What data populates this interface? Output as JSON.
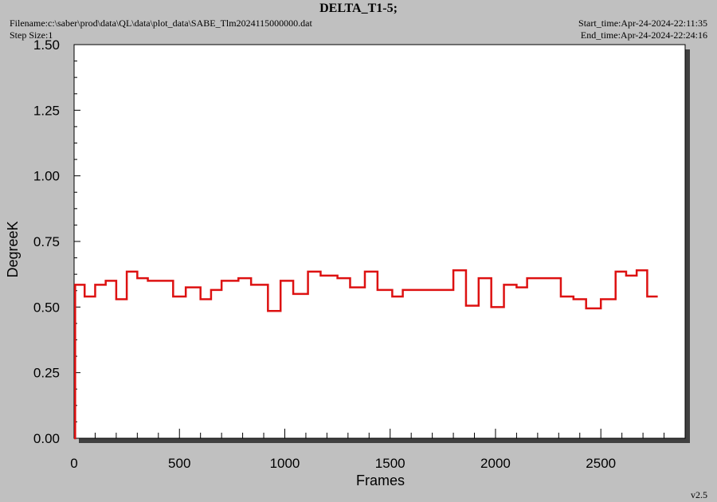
{
  "header": {
    "title": "DELTA_T1-5;",
    "filename": "Filename:c:\\saber\\prod\\data\\QL\\data\\plot_data\\SABE_Tlm2024115000000.dat",
    "step_size": "Step Size:1",
    "start_time": "Start_time:Apr-24-2024-22:11:35",
    "end_time": "End_time:Apr-24-2024-22:24:16"
  },
  "footer": {
    "version": "v2.5"
  },
  "colors": {
    "series": "#dd1111",
    "plot_bg": "#ffffff",
    "page_bg": "#c0c0c0",
    "shadow": "#404040"
  },
  "chart_data": {
    "type": "line",
    "title": "DELTA_T1-5;",
    "xlabel": "Frames",
    "ylabel": "DegreeK",
    "xlim": [
      0,
      2900
    ],
    "ylim": [
      0,
      1.5
    ],
    "x_ticks": [
      0,
      500,
      1000,
      1500,
      2000,
      2500
    ],
    "x_tick_labels": [
      "0",
      "500",
      "1000",
      "1500",
      "2000",
      "2500"
    ],
    "y_ticks": [
      0,
      0.25,
      0.5,
      0.75,
      1.0,
      1.25,
      1.5
    ],
    "y_tick_labels": [
      "0.00",
      "0.25",
      "0.50",
      "0.75",
      "1.00",
      "1.25",
      "1.50"
    ],
    "grid": false,
    "series": [
      {
        "step": true,
        "x": [
          0,
          5,
          50,
          100,
          150,
          200,
          250,
          300,
          350,
          470,
          530,
          600,
          650,
          700,
          780,
          840,
          920,
          980,
          1040,
          1110,
          1170,
          1250,
          1310,
          1380,
          1440,
          1510,
          1560,
          1630,
          1800,
          1860,
          1920,
          1980,
          2040,
          2100,
          2150,
          2310,
          2370,
          2430,
          2500,
          2570,
          2620,
          2670,
          2720,
          2770
        ],
        "y": [
          0.0,
          0.585,
          0.54,
          0.585,
          0.6,
          0.53,
          0.635,
          0.61,
          0.6,
          0.54,
          0.575,
          0.53,
          0.565,
          0.6,
          0.61,
          0.585,
          0.485,
          0.6,
          0.55,
          0.635,
          0.62,
          0.61,
          0.575,
          0.635,
          0.565,
          0.54,
          0.565,
          0.565,
          0.64,
          0.505,
          0.61,
          0.5,
          0.585,
          0.575,
          0.61,
          0.54,
          0.53,
          0.495,
          0.53,
          0.635,
          0.62,
          0.64,
          0.54,
          0.54
        ]
      }
    ]
  }
}
